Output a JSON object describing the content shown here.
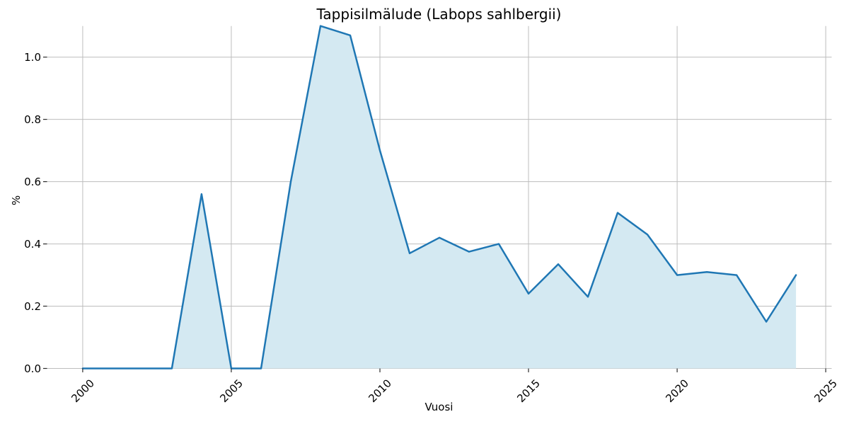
{
  "chart_data": {
    "type": "area",
    "title": "Tappisilmälude (Labops sahlbergii)",
    "xlabel": "Vuosi",
    "ylabel": "%",
    "x": [
      2000,
      2001,
      2002,
      2003,
      2004,
      2005,
      2006,
      2007,
      2008,
      2009,
      2010,
      2011,
      2012,
      2013,
      2014,
      2015,
      2016,
      2017,
      2018,
      2019,
      2020,
      2021,
      2022,
      2023,
      2024
    ],
    "values": [
      0.0,
      0.0,
      0.0,
      0.0,
      0.56,
      0.0,
      0.0,
      0.6,
      1.1,
      1.07,
      0.7,
      0.37,
      0.42,
      0.375,
      0.4,
      0.24,
      0.335,
      0.23,
      0.5,
      0.43,
      0.3,
      0.31,
      0.3,
      0.15,
      0.3
    ],
    "xlim": [
      1998.8,
      2025.2
    ],
    "ylim": [
      0,
      1.1
    ],
    "x_ticks": [
      2000,
      2005,
      2010,
      2015,
      2020,
      2025
    ],
    "x_tick_labels": [
      "2000",
      "2005",
      "2010",
      "2015",
      "2020",
      "2025"
    ],
    "y_ticks": [
      0.0,
      0.2,
      0.4,
      0.6,
      0.8,
      1.0
    ],
    "y_tick_labels": [
      "0.0",
      "0.2",
      "0.4",
      "0.6",
      "0.8",
      "1.0"
    ],
    "grid": true,
    "legend": false,
    "line_color": "#1f77b4",
    "fill_color": "#d4e9f2",
    "grid_color": "#bdbdbd",
    "tick_color": "#2b2b2b",
    "x_tick_rotation_deg": 45
  }
}
